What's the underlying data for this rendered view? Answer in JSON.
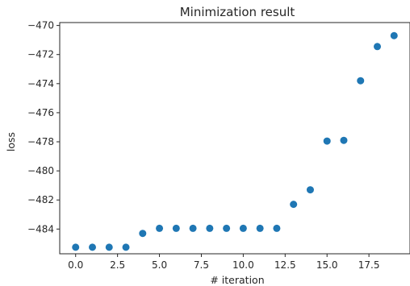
{
  "chart_data": {
    "type": "scatter",
    "title": "Minimization result",
    "xlabel": "# iteration",
    "ylabel": "loss",
    "xlim": [
      -0.95,
      19.95
    ],
    "ylim": [
      -485.7,
      -469.8
    ],
    "x_ticks": [
      0.0,
      2.5,
      5.0,
      7.5,
      10.0,
      12.5,
      15.0,
      17.5
    ],
    "x_tick_labels": [
      "0.0",
      "2.5",
      "5.0",
      "7.5",
      "10.0",
      "12.5",
      "15.0",
      "17.5"
    ],
    "y_ticks": [
      -484,
      -482,
      -480,
      -478,
      -476,
      -474,
      -472,
      -470
    ],
    "y_tick_labels": [
      "−484",
      "−482",
      "−480",
      "−478",
      "−476",
      "−474",
      "−472",
      "−470"
    ],
    "grid": false,
    "marker_color": "#1f77b4",
    "x": [
      0,
      1,
      2,
      3,
      4,
      5,
      6,
      7,
      8,
      9,
      10,
      11,
      12,
      13,
      14,
      15,
      16,
      17,
      18,
      19
    ],
    "y": [
      -485.25,
      -485.25,
      -485.25,
      -485.25,
      -484.3,
      -483.95,
      -483.95,
      -483.95,
      -483.95,
      -483.95,
      -483.95,
      -483.95,
      -483.95,
      -482.3,
      -481.3,
      -477.95,
      -477.9,
      -473.8,
      -471.45,
      -470.7
    ]
  }
}
